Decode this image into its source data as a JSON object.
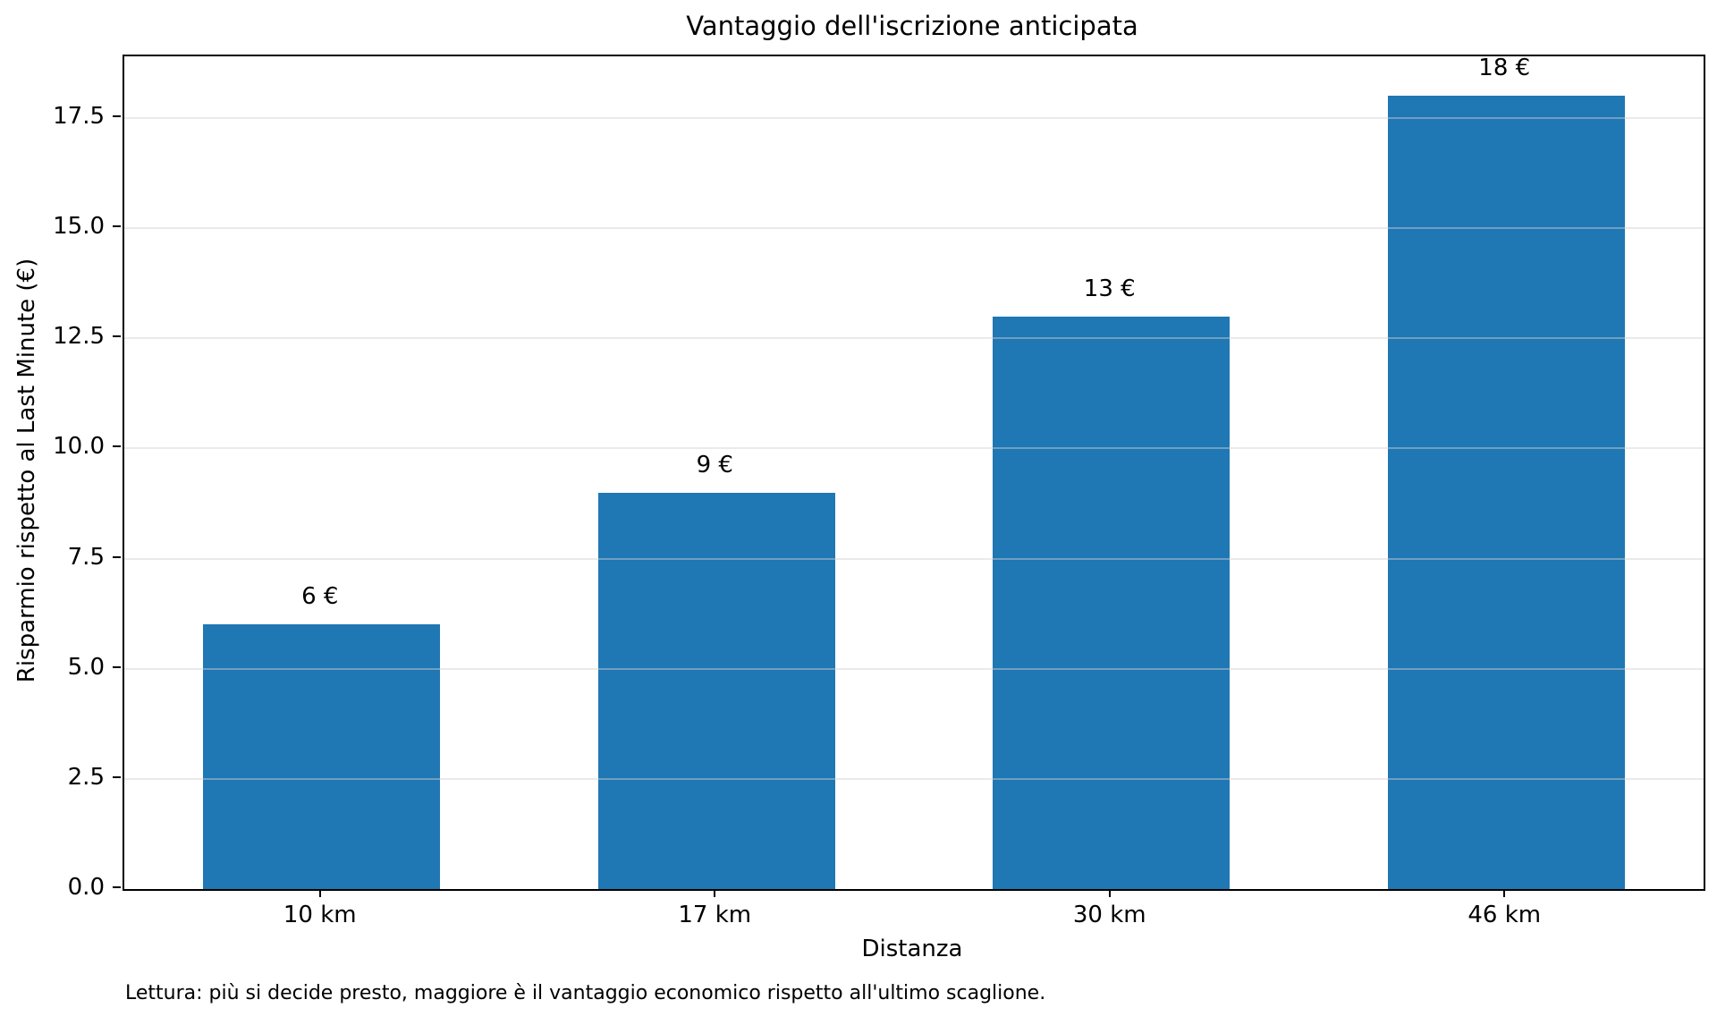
{
  "chart_data": {
    "type": "bar",
    "title": "Vantaggio dell'iscrizione anticipata",
    "categories": [
      "10 km",
      "17 km",
      "30 km",
      "46 km"
    ],
    "values": [
      6,
      9,
      13,
      18
    ],
    "value_labels": [
      "6 €",
      "9 €",
      "13 €",
      "18 €"
    ],
    "xlabel": "Distanza",
    "ylabel": "Risparmio rispetto al Last Minute (€)",
    "ylim": [
      0,
      18.9
    ],
    "yticks": [
      0.0,
      2.5,
      5.0,
      7.5,
      10.0,
      12.5,
      15.0,
      17.5
    ],
    "ytick_labels": [
      "0.0",
      "2.5",
      "5.0",
      "7.5",
      "10.0",
      "12.5",
      "15.0",
      "17.5"
    ],
    "grid": "horizontal",
    "legend": "none",
    "bar_color": "#1f77b4",
    "bar_width_fraction": 0.6,
    "footer_note": "Lettura: più si decide presto, maggiore è il vantaggio economico rispetto all'ultimo scaglione."
  }
}
